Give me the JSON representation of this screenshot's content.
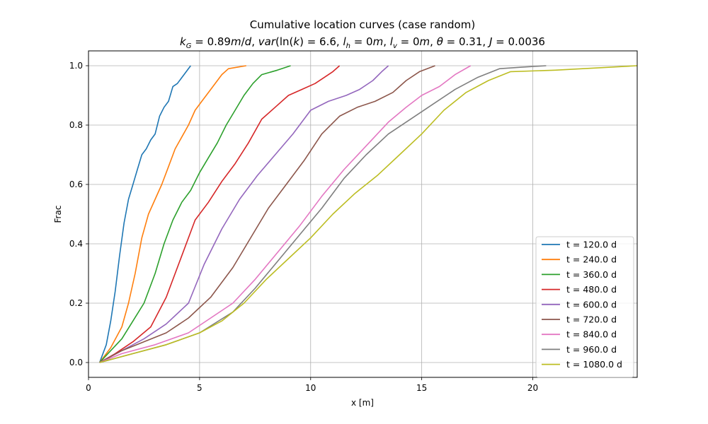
{
  "chart_data": {
    "type": "line",
    "title": "Cumulative location curves (case random)",
    "subtitle": "k_G = 0.89 m/d, var(ln(k) = 6.6, l_h = 0 m, l_v = 0 m, θ = 0.31, J = 0.0036",
    "xlabel": "x [m]",
    "ylabel": "Frac",
    "xlim": [
      0,
      24.7
    ],
    "ylim": [
      -0.05,
      1.05
    ],
    "xticks": [
      0,
      5,
      10,
      15,
      20
    ],
    "yticks": [
      0.0,
      0.2,
      0.4,
      0.6,
      0.8,
      1.0
    ],
    "grid": true,
    "legend_position": "lower right",
    "series": [
      {
        "name": "t = 120.0 d",
        "color": "#1f77b4",
        "x": [
          0.5,
          0.8,
          1.0,
          1.2,
          1.4,
          1.6,
          1.8,
          2.0,
          2.2,
          2.4,
          2.6,
          2.8,
          3.0,
          3.2,
          3.4,
          3.6,
          3.8,
          4.0,
          4.3,
          4.6
        ],
        "y": [
          0.0,
          0.06,
          0.14,
          0.24,
          0.36,
          0.47,
          0.55,
          0.6,
          0.65,
          0.7,
          0.72,
          0.75,
          0.77,
          0.83,
          0.86,
          0.88,
          0.93,
          0.94,
          0.97,
          1.0
        ]
      },
      {
        "name": "t = 240.0 d",
        "color": "#ff7f0e",
        "x": [
          0.5,
          1.0,
          1.5,
          1.8,
          2.1,
          2.4,
          2.7,
          3.0,
          3.3,
          3.6,
          3.9,
          4.2,
          4.5,
          4.8,
          5.1,
          5.5,
          6.0,
          6.3,
          6.7,
          7.1
        ],
        "y": [
          0.0,
          0.05,
          0.12,
          0.2,
          0.3,
          0.42,
          0.5,
          0.55,
          0.6,
          0.66,
          0.72,
          0.76,
          0.8,
          0.85,
          0.88,
          0.92,
          0.97,
          0.99,
          0.995,
          1.0
        ]
      },
      {
        "name": "t = 360.0 d",
        "color": "#2ca02c",
        "x": [
          0.5,
          1.0,
          1.5,
          2.0,
          2.5,
          3.0,
          3.4,
          3.8,
          4.2,
          4.6,
          5.0,
          5.4,
          5.8,
          6.2,
          6.6,
          7.0,
          7.4,
          7.8,
          8.5,
          9.1
        ],
        "y": [
          0.0,
          0.04,
          0.08,
          0.14,
          0.2,
          0.3,
          0.4,
          0.48,
          0.54,
          0.58,
          0.64,
          0.69,
          0.74,
          0.8,
          0.85,
          0.9,
          0.94,
          0.97,
          0.985,
          1.0
        ]
      },
      {
        "name": "t = 480.0 d",
        "color": "#d62728",
        "x": [
          0.5,
          1.2,
          2.0,
          2.8,
          3.5,
          4.2,
          4.8,
          5.4,
          6.0,
          6.6,
          7.2,
          7.8,
          8.4,
          9.0,
          9.6,
          10.2,
          10.6,
          11.0,
          11.3
        ],
        "y": [
          0.0,
          0.03,
          0.07,
          0.12,
          0.22,
          0.36,
          0.48,
          0.54,
          0.61,
          0.67,
          0.74,
          0.82,
          0.86,
          0.9,
          0.92,
          0.94,
          0.96,
          0.98,
          1.0
        ]
      },
      {
        "name": "t = 600.0 d",
        "color": "#9467bd",
        "x": [
          0.5,
          1.5,
          2.5,
          3.5,
          4.5,
          5.2,
          6.0,
          6.8,
          7.6,
          8.4,
          9.2,
          10.0,
          10.8,
          11.6,
          12.2,
          12.8,
          13.2,
          13.5
        ],
        "y": [
          0.0,
          0.04,
          0.08,
          0.13,
          0.2,
          0.33,
          0.45,
          0.55,
          0.63,
          0.7,
          0.77,
          0.85,
          0.88,
          0.9,
          0.92,
          0.95,
          0.98,
          1.0
        ]
      },
      {
        "name": "t = 720.0 d",
        "color": "#8c564b",
        "x": [
          0.5,
          1.5,
          2.5,
          3.5,
          4.5,
          5.5,
          6.5,
          7.3,
          8.1,
          8.9,
          9.7,
          10.5,
          11.3,
          12.1,
          12.9,
          13.7,
          14.3,
          14.9,
          15.6
        ],
        "y": [
          0.0,
          0.04,
          0.07,
          0.1,
          0.15,
          0.22,
          0.32,
          0.42,
          0.52,
          0.6,
          0.68,
          0.77,
          0.83,
          0.86,
          0.88,
          0.91,
          0.95,
          0.98,
          1.0
        ]
      },
      {
        "name": "t = 840.0 d",
        "color": "#e377c2",
        "x": [
          0.5,
          1.5,
          3.0,
          4.5,
          5.5,
          6.5,
          7.5,
          8.5,
          9.5,
          10.5,
          11.5,
          12.5,
          13.5,
          14.3,
          15.0,
          15.8,
          16.5,
          17.2
        ],
        "y": [
          0.0,
          0.03,
          0.06,
          0.1,
          0.15,
          0.2,
          0.28,
          0.37,
          0.46,
          0.56,
          0.65,
          0.73,
          0.81,
          0.86,
          0.9,
          0.93,
          0.97,
          1.0
        ]
      },
      {
        "name": "t = 960.0 d",
        "color": "#7f7f7f",
        "x": [
          0.5,
          2.0,
          3.5,
          5.0,
          6.5,
          7.5,
          8.5,
          9.5,
          10.5,
          11.5,
          12.5,
          13.5,
          14.5,
          15.5,
          16.5,
          17.5,
          18.5,
          19.5,
          20.6
        ],
        "y": [
          0.0,
          0.03,
          0.06,
          0.1,
          0.17,
          0.25,
          0.34,
          0.43,
          0.52,
          0.62,
          0.7,
          0.77,
          0.82,
          0.87,
          0.92,
          0.96,
          0.99,
          0.995,
          1.0
        ]
      },
      {
        "name": "t = 1080.0 d",
        "color": "#bcbd22",
        "x": [
          0.5,
          2.0,
          3.5,
          5.0,
          6.0,
          7.0,
          8.0,
          9.0,
          10.0,
          11.0,
          12.0,
          13.0,
          14.0,
          15.0,
          16.0,
          17.0,
          18.0,
          19.0,
          21.0,
          24.7
        ],
        "y": [
          0.0,
          0.03,
          0.06,
          0.1,
          0.14,
          0.2,
          0.28,
          0.35,
          0.42,
          0.5,
          0.57,
          0.63,
          0.7,
          0.77,
          0.85,
          0.91,
          0.95,
          0.98,
          0.985,
          1.0
        ]
      }
    ]
  }
}
